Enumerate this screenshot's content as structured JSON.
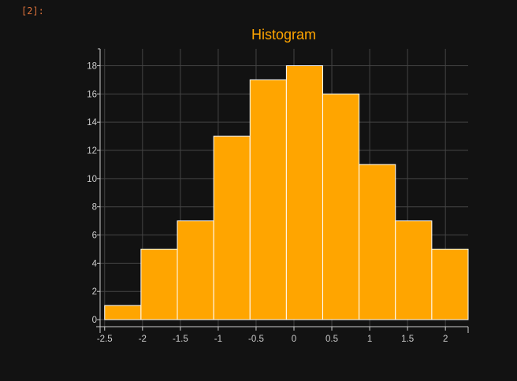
{
  "cell_prompt": "[2]:",
  "colors": {
    "background": "#121212",
    "bar_fill": "#ffa500",
    "bar_edge": "#ffffff",
    "title": "#ffa500",
    "grid": "#444444",
    "axis": "#cccccc",
    "prompt": "#d9703a"
  },
  "chart_data": {
    "type": "bar",
    "title": "Histogram",
    "xlabel": "",
    "ylabel": "",
    "grid": true,
    "bins": [
      {
        "x0": -2.5,
        "x1": -2.02,
        "count": 1
      },
      {
        "x0": -2.02,
        "x1": -1.54,
        "count": 5
      },
      {
        "x0": -1.54,
        "x1": -1.06,
        "count": 7
      },
      {
        "x0": -1.06,
        "x1": -0.58,
        "count": 13
      },
      {
        "x0": -0.58,
        "x1": -0.1,
        "count": 17
      },
      {
        "x0": -0.1,
        "x1": 0.38,
        "count": 18
      },
      {
        "x0": 0.38,
        "x1": 0.86,
        "count": 16
      },
      {
        "x0": 0.86,
        "x1": 1.34,
        "count": 11
      },
      {
        "x0": 1.34,
        "x1": 1.82,
        "count": 7
      },
      {
        "x0": 1.82,
        "x1": 2.3,
        "count": 5
      }
    ],
    "xlim": [
      -2.56,
      2.3
    ],
    "ylim": [
      -0.5,
      19.2
    ],
    "xticks": [
      -2.5,
      -2,
      -1.5,
      -1,
      -0.5,
      0,
      0.5,
      1,
      1.5,
      2
    ],
    "xtick_labels": [
      "-2.5",
      "-2",
      "-1.5",
      "-1",
      "-0.5",
      "0",
      "0.5",
      "1",
      "1.5",
      "2"
    ],
    "yticks": [
      0,
      2,
      4,
      6,
      8,
      10,
      12,
      14,
      16,
      18
    ],
    "ytick_labels": [
      "0",
      "2",
      "4",
      "6",
      "8",
      "10",
      "12",
      "14",
      "16",
      "18"
    ]
  }
}
